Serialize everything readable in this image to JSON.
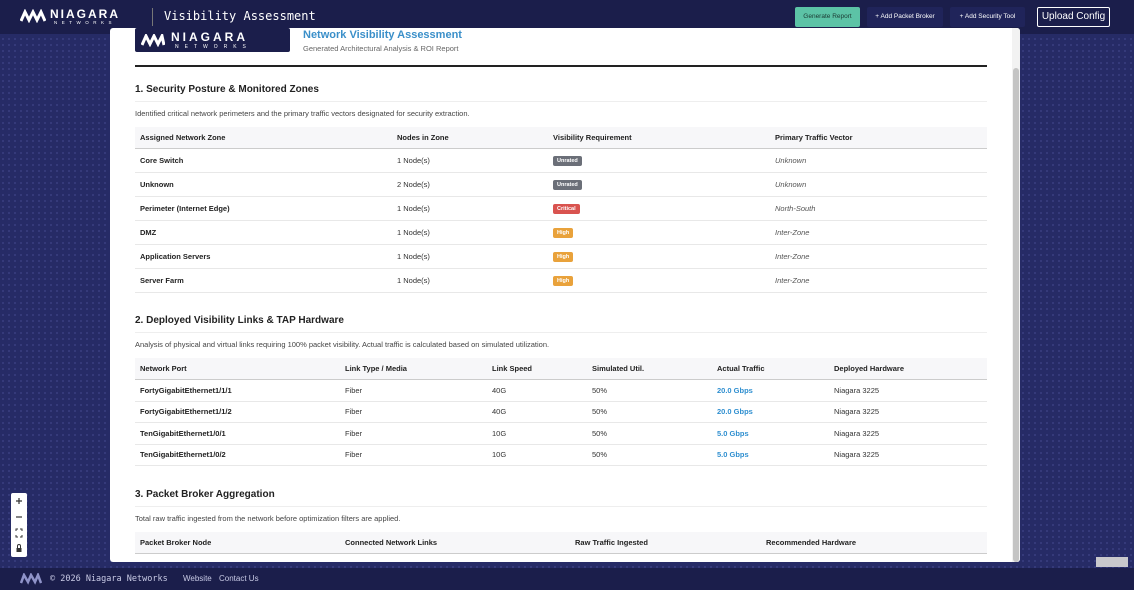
{
  "header": {
    "logo": "NIAGARA",
    "logo_sub": "NETWORKS",
    "title": "Visibility Assessment",
    "buttons": [
      "Generate Report",
      "+ Add Packet Broker",
      "+ Add Security Tool",
      "Upload Config"
    ]
  },
  "report": {
    "logo": "NIAGARA",
    "logo_sub": "NETWORKS",
    "title": "Network Visibility Assessment",
    "subtitle": "Generated Architectural Analysis & ROI Report",
    "sections": [
      {
        "heading": "1. Security Posture & Monitored Zones",
        "description": "Identified critical network perimeters and the primary traffic vectors designated for security extraction.",
        "table": {
          "columns": [
            "Assigned Network Zone",
            "Nodes in Zone",
            "Visibility Requirement",
            "Primary Traffic Vector"
          ],
          "rows": [
            [
              "Core Switch",
              "1 Node(s)",
              {
                "label": "Unrated",
                "color": "#6b6f78"
              },
              "Unknown"
            ],
            [
              "Unknown",
              "2 Node(s)",
              {
                "label": "Unrated",
                "color": "#6b6f78"
              },
              "Unknown"
            ],
            [
              "Perimeter (Internet Edge)",
              "1 Node(s)",
              {
                "label": "Critical",
                "color": "#d9534f"
              },
              "North-South"
            ],
            [
              "DMZ",
              "1 Node(s)",
              {
                "label": "High",
                "color": "#e9a23b"
              },
              "Inter-Zone"
            ],
            [
              "Application Servers",
              "1 Node(s)",
              {
                "label": "High",
                "color": "#e9a23b"
              },
              "Inter-Zone"
            ],
            [
              "Server Farm",
              "1 Node(s)",
              {
                "label": "High",
                "color": "#e9a23b"
              },
              "Inter-Zone"
            ]
          ]
        }
      },
      {
        "heading": "2. Deployed Visibility Links & TAP Hardware",
        "description": "Analysis of physical and virtual links requiring 100% packet visibility. Actual traffic is calculated based on simulated utilization.",
        "table": {
          "columns": [
            "Network Port",
            "Link Type / Media",
            "Link Speed",
            "Simulated Util.",
            "Actual Traffic",
            "Deployed Hardware"
          ],
          "rows": [
            [
              "FortyGigabitEthernet1/1/1",
              "Fiber",
              "40G",
              "50%",
              "20.0 Gbps",
              "Niagara 3225"
            ],
            [
              "FortyGigabitEthernet1/1/2",
              "Fiber",
              "40G",
              "50%",
              "20.0 Gbps",
              "Niagara 3225"
            ],
            [
              "TenGigabitEthernet1/0/1",
              "Fiber",
              "10G",
              "50%",
              "5.0 Gbps",
              "Niagara 3225"
            ],
            [
              "TenGigabitEthernet1/0/2",
              "Fiber",
              "10G",
              "50%",
              "5.0 Gbps",
              "Niagara 3225"
            ]
          ]
        }
      },
      {
        "heading": "3. Packet Broker Aggregation",
        "description": "Total raw traffic ingested from the network before optimization filters are applied.",
        "table": {
          "columns": [
            "Packet Broker Node",
            "Connected Network Links",
            "Raw Traffic Ingested",
            "Recommended Hardware"
          ],
          "rows": []
        }
      }
    ]
  },
  "footer": {
    "copyright": "© 2026 Niagara Networks",
    "links": [
      "Website",
      "Contact Us"
    ]
  }
}
